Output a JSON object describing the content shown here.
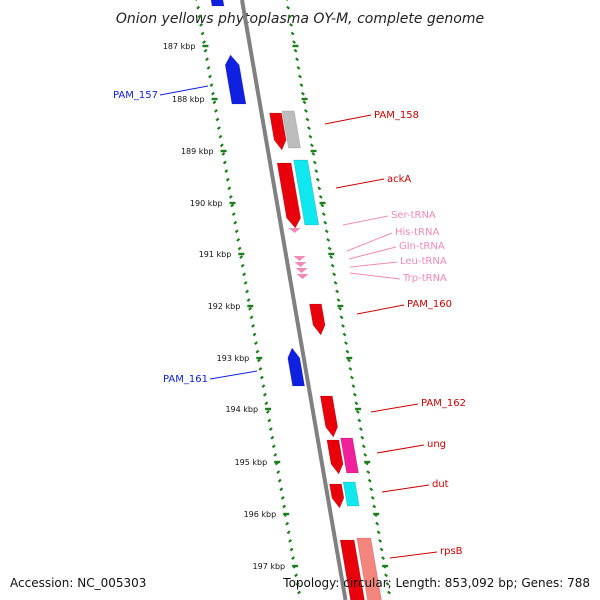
{
  "title": "Onion yellows phytoplasma OY-M, complete genome",
  "accession": "Accession: NC_005303",
  "topology": "Topology: circular; Length: 853,092 bp; Genes: 788",
  "colors": {
    "tick": "#1e7d1e",
    "forward_strand": "#e8000a",
    "reverse_strand": "#1020e0",
    "trna": "#f08ab8",
    "other": "#bdbdbd",
    "cyan": "#10e8f0",
    "magenta": "#f0209a",
    "salmon": "#f4857c",
    "backbone": "#808080"
  },
  "ticks": [
    {
      "label": "187 kbp"
    },
    {
      "label": "188 kbp"
    },
    {
      "label": "189 kbp"
    },
    {
      "label": "190 kbp"
    },
    {
      "label": "191 kbp"
    },
    {
      "label": "192 kbp"
    },
    {
      "label": "193 kbp"
    },
    {
      "label": "194 kbp"
    },
    {
      "label": "195 kbp"
    },
    {
      "label": "196 kbp"
    },
    {
      "label": "197 kbp"
    }
  ],
  "gene_labels": [
    {
      "text": "PAM_157",
      "color": "#1020e0",
      "side": "left"
    },
    {
      "text": "PAM_158",
      "color": "#cc0000",
      "side": "right"
    },
    {
      "text": "ackA",
      "color": "#cc0000",
      "side": "right"
    },
    {
      "text": "Ser-tRNA",
      "color": "#f08ab8",
      "side": "right"
    },
    {
      "text": "His-tRNA",
      "color": "#f08ab8",
      "side": "right"
    },
    {
      "text": "Gln-tRNA",
      "color": "#f08ab8",
      "side": "right"
    },
    {
      "text": "Leu-tRNA",
      "color": "#f08ab8",
      "side": "right"
    },
    {
      "text": "Trp-tRNA",
      "color": "#f08ab8",
      "side": "right"
    },
    {
      "text": "PAM_160",
      "color": "#cc0000",
      "side": "right"
    },
    {
      "text": "PAM_161",
      "color": "#1020e0",
      "side": "left"
    },
    {
      "text": "PAM_162",
      "color": "#cc0000",
      "side": "right"
    },
    {
      "text": "ung",
      "color": "#cc0000",
      "side": "right"
    },
    {
      "text": "dut",
      "color": "#cc0000",
      "side": "right"
    },
    {
      "text": "rpsB",
      "color": "#cc0000",
      "side": "right"
    }
  ]
}
